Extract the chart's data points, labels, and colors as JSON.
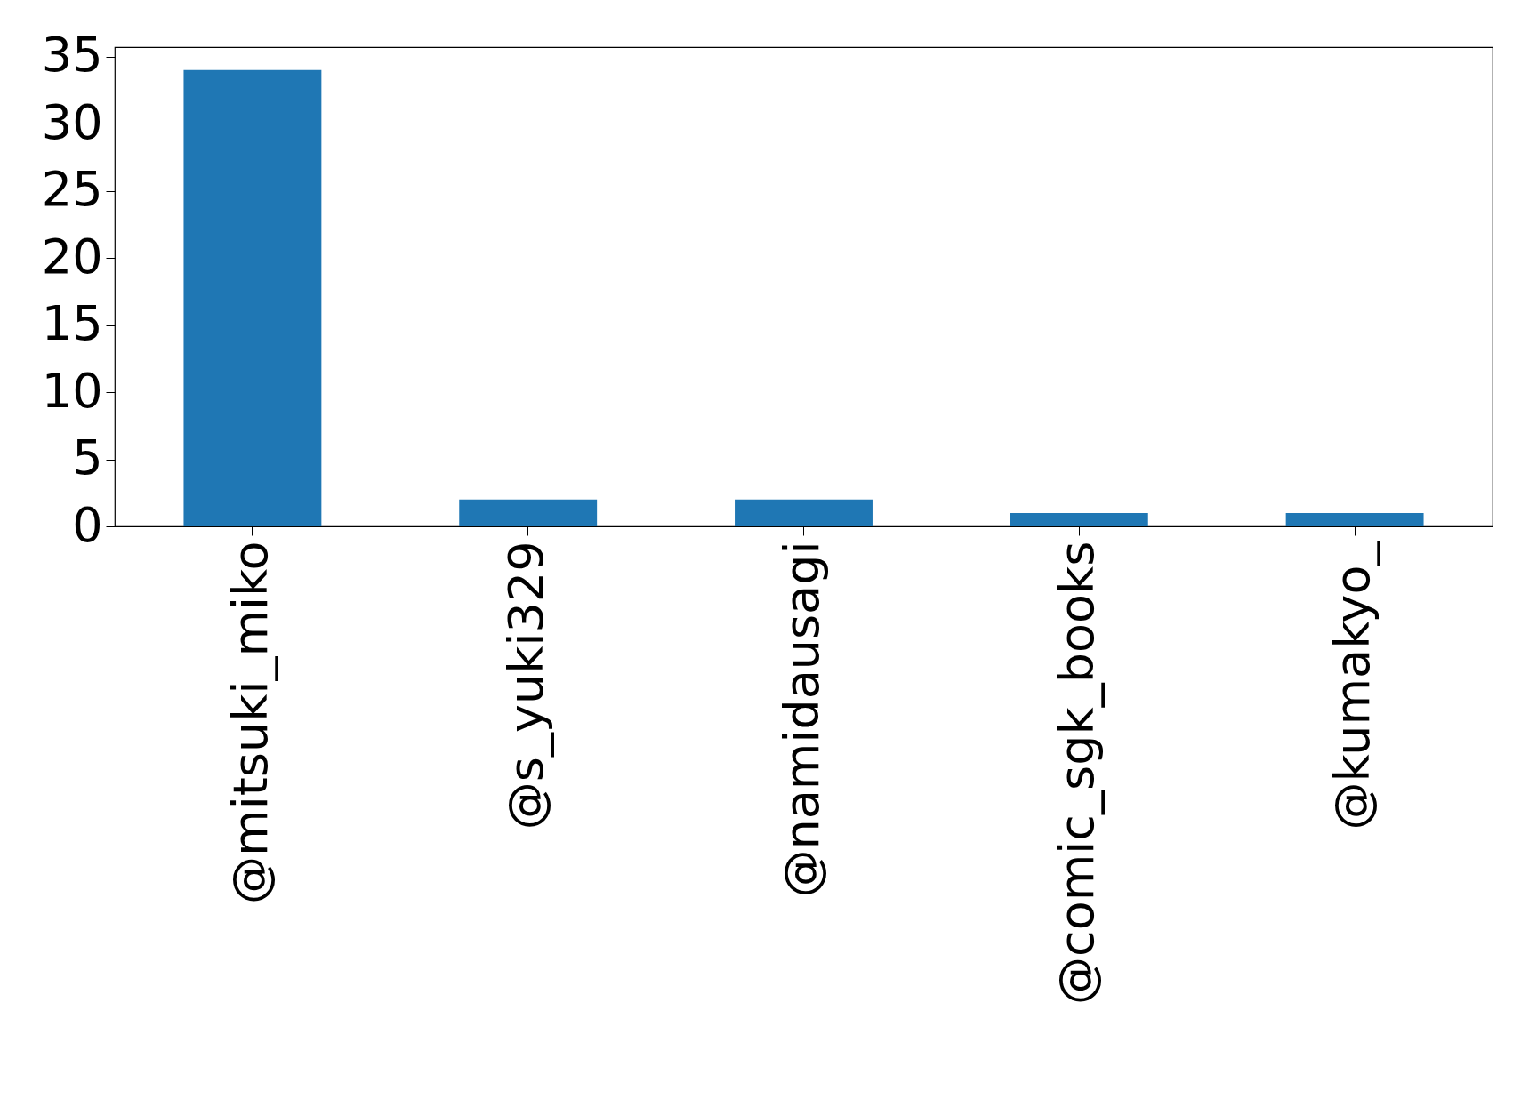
{
  "chart_data": {
    "type": "bar",
    "categories": [
      "@mitsuki_miko",
      "@s_yuki329",
      "@namidausagi",
      "@comic_sgk_books",
      "@kumakyo_"
    ],
    "values": [
      34,
      2,
      2,
      1,
      1
    ],
    "color": "#1f77b4",
    "ylim": [
      0,
      35.7
    ],
    "yticks": [
      0,
      5,
      10,
      15,
      20,
      25,
      30,
      35
    ],
    "grid": false
  }
}
